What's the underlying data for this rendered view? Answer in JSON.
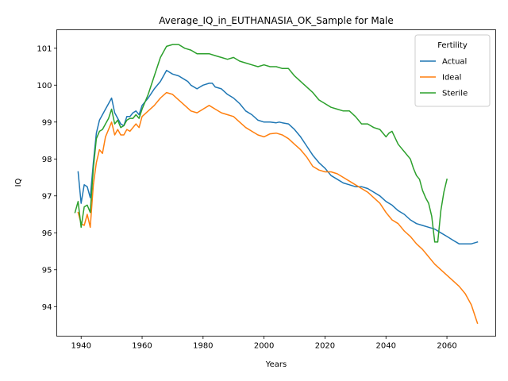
{
  "chart_data": {
    "type": "line",
    "title": "Average_IQ_in_EUTHANASIA_OK_Sample for Male",
    "xlabel": "Years",
    "ylabel": "IQ",
    "xlim": [
      1932,
      2076
    ],
    "ylim": [
      93.2,
      101.5
    ],
    "xticks": [
      1940,
      1960,
      1980,
      2000,
      2020,
      2040,
      2060
    ],
    "yticks": [
      94,
      95,
      96,
      97,
      98,
      99,
      100,
      101
    ],
    "grid": false,
    "legend": {
      "title": "Fertility",
      "placement": "top-right"
    },
    "series": [
      {
        "name": "Actual",
        "color": "#1f77b4",
        "x": [
          1939,
          1940,
          1941,
          1942,
          1943,
          1944,
          1945,
          1946,
          1947,
          1948,
          1949,
          1950,
          1951,
          1952,
          1953,
          1954,
          1955,
          1956,
          1957,
          1958,
          1959,
          1960,
          1962,
          1964,
          1966,
          1968,
          1969,
          1970,
          1972,
          1974,
          1975,
          1976,
          1978,
          1980,
          1982,
          1983,
          1984,
          1986,
          1988,
          1990,
          1992,
          1994,
          1996,
          1998,
          2000,
          2002,
          2004,
          2005,
          2006,
          2008,
          2010,
          2012,
          2014,
          2016,
          2018,
          2020,
          2022,
          2024,
          2026,
          2028,
          2030,
          2032,
          2034,
          2036,
          2038,
          2040,
          2042,
          2044,
          2046,
          2048,
          2050,
          2052,
          2054,
          2056,
          2058,
          2060,
          2062,
          2064,
          2066,
          2068,
          2070
        ],
        "values": [
          97.65,
          96.8,
          97.3,
          97.25,
          96.95,
          97.9,
          98.7,
          99.05,
          99.2,
          99.35,
          99.5,
          99.65,
          99.25,
          99.1,
          98.95,
          98.9,
          99.15,
          99.15,
          99.25,
          99.3,
          99.2,
          99.45,
          99.65,
          99.9,
          100.1,
          100.4,
          100.35,
          100.3,
          100.25,
          100.15,
          100.1,
          100.0,
          99.9,
          100.0,
          100.05,
          100.05,
          99.95,
          99.9,
          99.75,
          99.65,
          99.5,
          99.3,
          99.2,
          99.05,
          99.0,
          99.0,
          98.98,
          99.0,
          98.98,
          98.95,
          98.8,
          98.6,
          98.35,
          98.1,
          97.9,
          97.75,
          97.55,
          97.45,
          97.35,
          97.3,
          97.25,
          97.25,
          97.2,
          97.1,
          97.0,
          96.85,
          96.75,
          96.6,
          96.5,
          96.35,
          96.25,
          96.2,
          96.15,
          96.1,
          96.0,
          95.9,
          95.8,
          95.7,
          95.7,
          95.7,
          95.75
        ]
      },
      {
        "name": "Ideal",
        "color": "#ff7f0e",
        "x": [
          1939,
          1940,
          1941,
          1942,
          1943,
          1944,
          1945,
          1946,
          1947,
          1948,
          1949,
          1950,
          1951,
          1952,
          1953,
          1954,
          1955,
          1956,
          1957,
          1958,
          1959,
          1960,
          1962,
          1964,
          1966,
          1968,
          1970,
          1972,
          1974,
          1976,
          1978,
          1980,
          1982,
          1984,
          1986,
          1988,
          1990,
          1992,
          1994,
          1996,
          1998,
          2000,
          2002,
          2004,
          2006,
          2008,
          2010,
          2012,
          2014,
          2016,
          2018,
          2020,
          2022,
          2024,
          2026,
          2028,
          2030,
          2032,
          2034,
          2036,
          2038,
          2040,
          2042,
          2044,
          2046,
          2048,
          2050,
          2052,
          2054,
          2056,
          2058,
          2060,
          2062,
          2064,
          2066,
          2068,
          2070
        ],
        "values": [
          96.55,
          96.25,
          96.2,
          96.5,
          96.15,
          97.3,
          97.9,
          98.25,
          98.15,
          98.6,
          98.8,
          99.0,
          98.65,
          98.8,
          98.65,
          98.65,
          98.8,
          98.75,
          98.85,
          98.95,
          98.85,
          99.15,
          99.3,
          99.45,
          99.65,
          99.8,
          99.75,
          99.6,
          99.45,
          99.3,
          99.25,
          99.35,
          99.45,
          99.35,
          99.25,
          99.2,
          99.15,
          99.0,
          98.85,
          98.75,
          98.65,
          98.6,
          98.68,
          98.7,
          98.65,
          98.55,
          98.4,
          98.25,
          98.05,
          97.8,
          97.7,
          97.65,
          97.65,
          97.6,
          97.5,
          97.4,
          97.3,
          97.2,
          97.1,
          96.95,
          96.8,
          96.55,
          96.35,
          96.25,
          96.05,
          95.9,
          95.7,
          95.55,
          95.35,
          95.15,
          95.0,
          94.85,
          94.7,
          94.55,
          94.35,
          94.05,
          93.55
        ]
      },
      {
        "name": "Sterile",
        "color": "#2ca02c",
        "x": [
          1938,
          1939,
          1940,
          1941,
          1942,
          1943,
          1944,
          1945,
          1946,
          1947,
          1948,
          1949,
          1950,
          1951,
          1952,
          1953,
          1954,
          1955,
          1956,
          1957,
          1958,
          1959,
          1960,
          1962,
          1964,
          1966,
          1968,
          1970,
          1972,
          1974,
          1976,
          1978,
          1980,
          1982,
          1984,
          1986,
          1988,
          1990,
          1992,
          1994,
          1996,
          1998,
          2000,
          2002,
          2004,
          2006,
          2008,
          2010,
          2012,
          2014,
          2016,
          2018,
          2020,
          2022,
          2024,
          2026,
          2028,
          2030,
          2032,
          2034,
          2036,
          2038,
          2040,
          2041,
          2042,
          2044,
          2046,
          2048,
          2049,
          2050,
          2051,
          2052,
          2053,
          2054,
          2055,
          2056,
          2057,
          2058,
          2059,
          2060
        ],
        "values": [
          96.55,
          96.85,
          96.15,
          96.7,
          96.75,
          96.55,
          97.75,
          98.55,
          98.75,
          98.8,
          98.95,
          99.1,
          99.35,
          98.95,
          99.05,
          98.85,
          98.9,
          99.05,
          99.1,
          99.1,
          99.2,
          99.1,
          99.35,
          99.75,
          100.25,
          100.75,
          101.05,
          101.1,
          101.1,
          101.0,
          100.95,
          100.85,
          100.85,
          100.85,
          100.8,
          100.75,
          100.7,
          100.75,
          100.65,
          100.6,
          100.55,
          100.5,
          100.55,
          100.5,
          100.5,
          100.45,
          100.45,
          100.25,
          100.1,
          99.95,
          99.8,
          99.6,
          99.5,
          99.4,
          99.35,
          99.3,
          99.3,
          99.15,
          98.95,
          98.95,
          98.85,
          98.8,
          98.6,
          98.7,
          98.75,
          98.4,
          98.2,
          98.0,
          97.75,
          97.55,
          97.45,
          97.15,
          96.95,
          96.8,
          96.45,
          95.75,
          95.75,
          96.6,
          97.1,
          97.45
        ]
      }
    ]
  }
}
